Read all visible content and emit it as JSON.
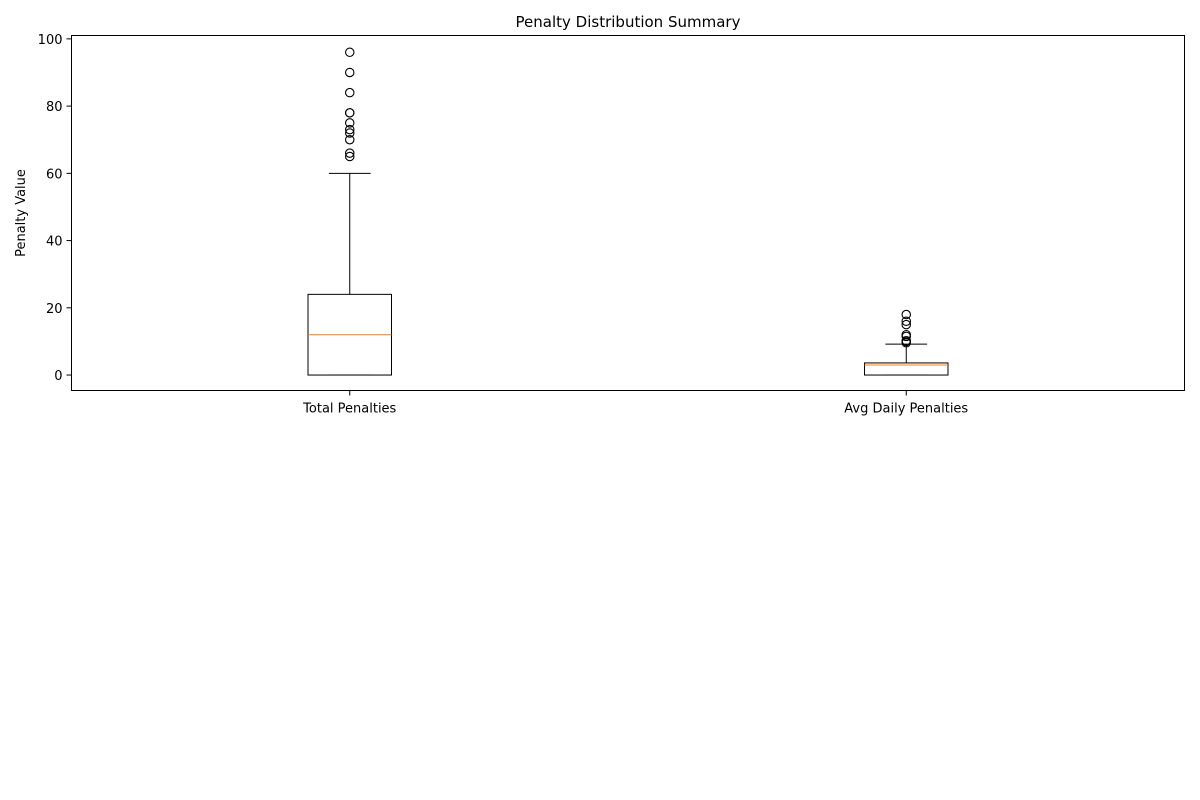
{
  "chart_data": {
    "type": "boxplot",
    "title": "Penalty Distribution Summary",
    "xlabel": "",
    "ylabel": "Penalty Value",
    "ylim": [
      -4.6,
      101
    ],
    "yticks": [
      0,
      20,
      40,
      60,
      80,
      100
    ],
    "grid": false,
    "categories": [
      "Total Penalties",
      "Avg Daily Penalties"
    ],
    "boxes": [
      {
        "label": "Total Penalties",
        "whisker_low": 0,
        "q1": 0,
        "median": 12,
        "q3": 24,
        "whisker_high": 60,
        "outliers": [
          65,
          66,
          70,
          72,
          73,
          75,
          78,
          78,
          84,
          90,
          96
        ]
      },
      {
        "label": "Avg Daily Penalties",
        "whisker_low": 0,
        "q1": 0,
        "median": 3,
        "q3": 3.6,
        "whisker_high": 9.2,
        "outliers": [
          9.6,
          10,
          10.2,
          11.5,
          12,
          15,
          16,
          18
        ]
      }
    ],
    "colors": {
      "box": "#000000",
      "median": "#ff7f0e",
      "outlier": "#000000"
    }
  }
}
